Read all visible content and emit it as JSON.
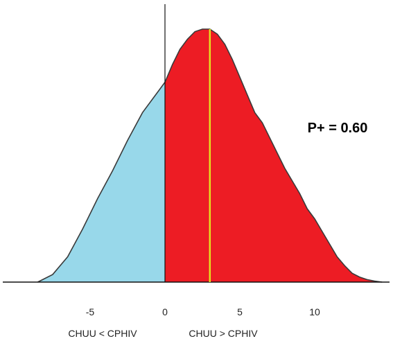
{
  "chart_data": {
    "type": "area",
    "title": "",
    "xlabel": "",
    "ylabel": "",
    "xlim": [
      -9,
      15
    ],
    "ylim": [
      0,
      1
    ],
    "grid": false,
    "legend": "none",
    "x_ticks": [
      -5,
      0,
      5,
      10
    ],
    "x_tick_labels": [
      "-5",
      "0",
      "5",
      "10"
    ],
    "split_x": 0,
    "marker_x": 3,
    "regions": [
      {
        "label": "CHUU < CPHIV",
        "color": "#98d8ea"
      },
      {
        "label": "CHUU > CPHIV",
        "color": "#ed1c24"
      }
    ],
    "annotation": "P+ = 0.60",
    "marker_color": "#e4e01e",
    "density": {
      "x": [
        -8.5,
        -7.5,
        -6.5,
        -5.5,
        -4.5,
        -3.5,
        -2.5,
        -1.5,
        -0.5,
        0,
        0.5,
        1,
        1.5,
        2,
        2.5,
        3,
        3.5,
        4,
        4.5,
        5,
        5.5,
        6,
        6.5,
        7,
        7.5,
        8,
        8.5,
        9,
        9.5,
        10,
        10.5,
        11,
        11.5,
        12,
        12.5,
        13,
        13.5,
        14,
        14.5
      ],
      "y": [
        0.0,
        0.03,
        0.1,
        0.21,
        0.33,
        0.44,
        0.56,
        0.67,
        0.75,
        0.79,
        0.86,
        0.92,
        0.96,
        0.99,
        1.0,
        1.0,
        0.98,
        0.94,
        0.88,
        0.81,
        0.74,
        0.67,
        0.63,
        0.57,
        0.51,
        0.45,
        0.4,
        0.35,
        0.29,
        0.25,
        0.2,
        0.15,
        0.1,
        0.065,
        0.035,
        0.02,
        0.01,
        0.004,
        0.0
      ]
    }
  }
}
